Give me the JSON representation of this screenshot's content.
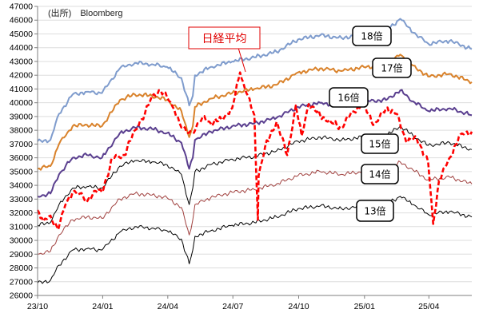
{
  "source": "(出所)　Bloomberg",
  "chart_data": {
    "type": "line",
    "ylim": [
      26000,
      47000
    ],
    "yticks": [
      "26000",
      "27000",
      "28000",
      "29000",
      "30000",
      "31000",
      "32000",
      "33000",
      "34000",
      "35000",
      "36000",
      "37000",
      "38000",
      "39000",
      "40000",
      "41000",
      "42000",
      "43000",
      "44000",
      "45000",
      "46000",
      "47000"
    ],
    "xlim": [
      "2023-10-02",
      "2025-05-31"
    ],
    "xticks": [
      {
        "date": "2023-10-02",
        "label": "23/10"
      },
      {
        "date": "2024-01-01",
        "label": "24/01"
      },
      {
        "date": "2024-04-01",
        "label": "24/04"
      },
      {
        "date": "2024-07-01",
        "label": "24/07"
      },
      {
        "date": "2024-10-01",
        "label": "24/10"
      },
      {
        "date": "2025-01-01",
        "label": "25/01"
      },
      {
        "date": "2025-04-01",
        "label": "25/04"
      }
    ],
    "annotation": "日経平均",
    "series": [
      {
        "name": "18倍",
        "color": "#7f9ccd",
        "width": 2,
        "dash": "",
        "points": [
          [
            "2023-10-02",
            37200
          ],
          [
            "2023-10-20",
            37300
          ],
          [
            "2023-11-01",
            39200
          ],
          [
            "2023-11-20",
            40600
          ],
          [
            "2023-12-10",
            40800
          ],
          [
            "2023-12-31",
            40700
          ],
          [
            "2024-01-25",
            42500
          ],
          [
            "2024-02-15",
            42900
          ],
          [
            "2024-03-10",
            42800
          ],
          [
            "2024-03-31",
            42600
          ],
          [
            "2024-04-20",
            41800
          ],
          [
            "2024-05-01",
            39800
          ],
          [
            "2024-05-06",
            40500
          ],
          [
            "2024-05-09",
            42000
          ],
          [
            "2024-05-31",
            42600
          ],
          [
            "2024-06-30",
            43000
          ],
          [
            "2024-07-31",
            43300
          ],
          [
            "2024-08-31",
            43700
          ],
          [
            "2024-09-30",
            44600
          ],
          [
            "2024-10-31",
            44900
          ],
          [
            "2024-11-30",
            44700
          ],
          [
            "2024-12-31",
            45000
          ],
          [
            "2025-01-31",
            45200
          ],
          [
            "2025-02-20",
            46100
          ],
          [
            "2025-03-10",
            45100
          ],
          [
            "2025-03-31",
            44300
          ],
          [
            "2025-04-30",
            44500
          ],
          [
            "2025-05-31",
            43900
          ]
        ]
      },
      {
        "name": "17倍",
        "color": "#d9822b",
        "width": 2,
        "dash": "",
        "points": [
          [
            "2023-10-02",
            35200
          ],
          [
            "2023-10-20",
            35400
          ],
          [
            "2023-11-01",
            37000
          ],
          [
            "2023-11-20",
            38300
          ],
          [
            "2023-12-10",
            38400
          ],
          [
            "2023-12-31",
            38300
          ],
          [
            "2024-01-25",
            40200
          ],
          [
            "2024-02-15",
            40600
          ],
          [
            "2024-03-10",
            40500
          ],
          [
            "2024-03-31",
            40200
          ],
          [
            "2024-04-20",
            39400
          ],
          [
            "2024-05-01",
            37500
          ],
          [
            "2024-05-06",
            38300
          ],
          [
            "2024-05-09",
            39700
          ],
          [
            "2024-05-31",
            40300
          ],
          [
            "2024-06-30",
            40700
          ],
          [
            "2024-07-31",
            41000
          ],
          [
            "2024-08-31",
            41300
          ],
          [
            "2024-09-30",
            42200
          ],
          [
            "2024-10-31",
            42500
          ],
          [
            "2024-11-30",
            42300
          ],
          [
            "2024-12-31",
            42600
          ],
          [
            "2025-01-31",
            42700
          ],
          [
            "2025-02-20",
            43500
          ],
          [
            "2025-03-10",
            42700
          ],
          [
            "2025-03-31",
            41900
          ],
          [
            "2025-04-30",
            42100
          ],
          [
            "2025-05-31",
            41500
          ]
        ]
      },
      {
        "name": "16倍",
        "color": "#5a3f8f",
        "width": 2,
        "dash": "",
        "points": [
          [
            "2023-10-02",
            33200
          ],
          [
            "2023-10-20",
            33400
          ],
          [
            "2023-11-01",
            34800
          ],
          [
            "2023-11-20",
            36000
          ],
          [
            "2023-12-10",
            36200
          ],
          [
            "2023-12-31",
            36000
          ],
          [
            "2024-01-25",
            37800
          ],
          [
            "2024-02-15",
            38200
          ],
          [
            "2024-03-10",
            38100
          ],
          [
            "2024-03-31",
            37800
          ],
          [
            "2024-04-20",
            37100
          ],
          [
            "2024-05-01",
            35200
          ],
          [
            "2024-05-06",
            36000
          ],
          [
            "2024-05-09",
            37300
          ],
          [
            "2024-05-31",
            37900
          ],
          [
            "2024-06-30",
            38300
          ],
          [
            "2024-07-31",
            38500
          ],
          [
            "2024-08-31",
            38900
          ],
          [
            "2024-09-30",
            39700
          ],
          [
            "2024-10-31",
            40000
          ],
          [
            "2024-11-30",
            39800
          ],
          [
            "2024-12-31",
            40100
          ],
          [
            "2025-01-31",
            40200
          ],
          [
            "2025-02-20",
            40900
          ],
          [
            "2025-03-10",
            40100
          ],
          [
            "2025-03-31",
            39400
          ],
          [
            "2025-04-30",
            39600
          ],
          [
            "2025-05-31",
            39100
          ]
        ]
      },
      {
        "name": "15倍",
        "color": "#000000",
        "width": 1,
        "dash": "",
        "points": [
          [
            "2023-10-02",
            31100
          ],
          [
            "2023-10-20",
            31300
          ],
          [
            "2023-11-01",
            32600
          ],
          [
            "2023-11-20",
            33800
          ],
          [
            "2023-12-10",
            33900
          ],
          [
            "2023-12-31",
            33800
          ],
          [
            "2024-01-25",
            35400
          ],
          [
            "2024-02-15",
            35800
          ],
          [
            "2024-03-10",
            35700
          ],
          [
            "2024-03-31",
            35500
          ],
          [
            "2024-04-20",
            34800
          ],
          [
            "2024-05-01",
            32600
          ],
          [
            "2024-05-06",
            33800
          ],
          [
            "2024-05-09",
            35000
          ],
          [
            "2024-05-31",
            35500
          ],
          [
            "2024-06-30",
            35900
          ],
          [
            "2024-07-31",
            36100
          ],
          [
            "2024-08-31",
            36500
          ],
          [
            "2024-09-30",
            37200
          ],
          [
            "2024-10-31",
            37500
          ],
          [
            "2024-11-30",
            37300
          ],
          [
            "2024-12-31",
            37500
          ],
          [
            "2025-01-31",
            37600
          ],
          [
            "2025-02-20",
            38300
          ],
          [
            "2025-03-10",
            37600
          ],
          [
            "2025-03-31",
            36900
          ],
          [
            "2025-04-30",
            37100
          ],
          [
            "2025-05-31",
            36600
          ]
        ]
      },
      {
        "name": "14倍",
        "color": "#a0403e",
        "width": 1,
        "dash": "",
        "points": [
          [
            "2023-10-02",
            29000
          ],
          [
            "2023-10-20",
            29200
          ],
          [
            "2023-11-01",
            30400
          ],
          [
            "2023-11-20",
            31500
          ],
          [
            "2023-12-10",
            31700
          ],
          [
            "2023-12-31",
            31600
          ],
          [
            "2024-01-25",
            33000
          ],
          [
            "2024-02-15",
            33400
          ],
          [
            "2024-03-10",
            33300
          ],
          [
            "2024-03-31",
            33100
          ],
          [
            "2024-04-20",
            32400
          ],
          [
            "2024-05-01",
            30400
          ],
          [
            "2024-05-06",
            31500
          ],
          [
            "2024-05-09",
            32600
          ],
          [
            "2024-05-31",
            33100
          ],
          [
            "2024-06-30",
            33500
          ],
          [
            "2024-07-31",
            33700
          ],
          [
            "2024-08-31",
            34100
          ],
          [
            "2024-09-30",
            34700
          ],
          [
            "2024-10-31",
            35000
          ],
          [
            "2024-11-30",
            34800
          ],
          [
            "2024-12-31",
            35000
          ],
          [
            "2025-01-31",
            35100
          ],
          [
            "2025-02-20",
            35700
          ],
          [
            "2025-03-10",
            35100
          ],
          [
            "2025-03-31",
            34400
          ],
          [
            "2025-04-30",
            34600
          ],
          [
            "2025-05-31",
            34100
          ]
        ]
      },
      {
        "name": "13倍",
        "color": "#000000",
        "width": 1,
        "dash": "",
        "points": [
          [
            "2023-10-02",
            26900
          ],
          [
            "2023-10-20",
            27100
          ],
          [
            "2023-11-01",
            28200
          ],
          [
            "2023-11-20",
            29300
          ],
          [
            "2023-12-10",
            29400
          ],
          [
            "2023-12-31",
            29300
          ],
          [
            "2024-01-25",
            30600
          ],
          [
            "2024-02-15",
            31000
          ],
          [
            "2024-03-10",
            30900
          ],
          [
            "2024-03-31",
            30700
          ],
          [
            "2024-04-20",
            30100
          ],
          [
            "2024-05-01",
            28300
          ],
          [
            "2024-05-06",
            29300
          ],
          [
            "2024-05-09",
            30300
          ],
          [
            "2024-05-31",
            30700
          ],
          [
            "2024-06-30",
            31100
          ],
          [
            "2024-07-31",
            31300
          ],
          [
            "2024-08-31",
            31700
          ],
          [
            "2024-09-30",
            32300
          ],
          [
            "2024-10-31",
            32500
          ],
          [
            "2024-11-30",
            32300
          ],
          [
            "2024-12-31",
            32500
          ],
          [
            "2025-01-31",
            32600
          ],
          [
            "2025-02-20",
            33200
          ],
          [
            "2025-03-10",
            32600
          ],
          [
            "2025-03-31",
            31900
          ],
          [
            "2025-04-30",
            32100
          ],
          [
            "2025-05-31",
            31700
          ]
        ]
      },
      {
        "name": "日経平均",
        "color": "#ff0000",
        "width": 2.6,
        "dash": "6,3",
        "points": [
          [
            "2023-10-02",
            32200
          ],
          [
            "2023-10-10",
            31400
          ],
          [
            "2023-10-20",
            31800
          ],
          [
            "2023-10-31",
            30800
          ],
          [
            "2023-11-10",
            32600
          ],
          [
            "2023-11-20",
            33500
          ],
          [
            "2023-11-30",
            33400
          ],
          [
            "2023-12-10",
            32800
          ],
          [
            "2023-12-20",
            33600
          ],
          [
            "2023-12-31",
            33500
          ],
          [
            "2024-01-15",
            36000
          ],
          [
            "2024-01-31",
            36200
          ],
          [
            "2024-02-15",
            38000
          ],
          [
            "2024-02-29",
            39200
          ],
          [
            "2024-03-10",
            40500
          ],
          [
            "2024-03-22",
            40900
          ],
          [
            "2024-03-31",
            40400
          ],
          [
            "2024-04-10",
            39500
          ],
          [
            "2024-04-20",
            38200
          ],
          [
            "2024-04-30",
            37800
          ],
          [
            "2024-05-10",
            38100
          ],
          [
            "2024-05-20",
            39000
          ],
          [
            "2024-05-31",
            38500
          ],
          [
            "2024-06-15",
            38800
          ],
          [
            "2024-06-30",
            39600
          ],
          [
            "2024-07-11",
            42200
          ],
          [
            "2024-07-20",
            40700
          ],
          [
            "2024-07-31",
            39100
          ],
          [
            "2024-08-02",
            35900
          ],
          [
            "2024-08-05",
            31500
          ],
          [
            "2024-08-06",
            34700
          ],
          [
            "2024-08-15",
            36800
          ],
          [
            "2024-08-31",
            38600
          ],
          [
            "2024-09-15",
            36200
          ],
          [
            "2024-09-27",
            39800
          ],
          [
            "2024-10-05",
            37600
          ],
          [
            "2024-10-15",
            39900
          ],
          [
            "2024-10-31",
            39100
          ],
          [
            "2024-11-15",
            38600
          ],
          [
            "2024-11-30",
            38200
          ],
          [
            "2024-12-15",
            39400
          ],
          [
            "2024-12-31",
            39800
          ],
          [
            "2025-01-15",
            38400
          ],
          [
            "2025-01-31",
            39600
          ],
          [
            "2025-02-15",
            39200
          ],
          [
            "2025-02-28",
            37200
          ],
          [
            "2025-03-15",
            37400
          ],
          [
            "2025-03-31",
            35700
          ],
          [
            "2025-04-07",
            31200
          ],
          [
            "2025-04-15",
            34300
          ],
          [
            "2025-04-30",
            36000
          ],
          [
            "2025-05-15",
            37700
          ],
          [
            "2025-05-31",
            37900
          ]
        ]
      }
    ]
  }
}
